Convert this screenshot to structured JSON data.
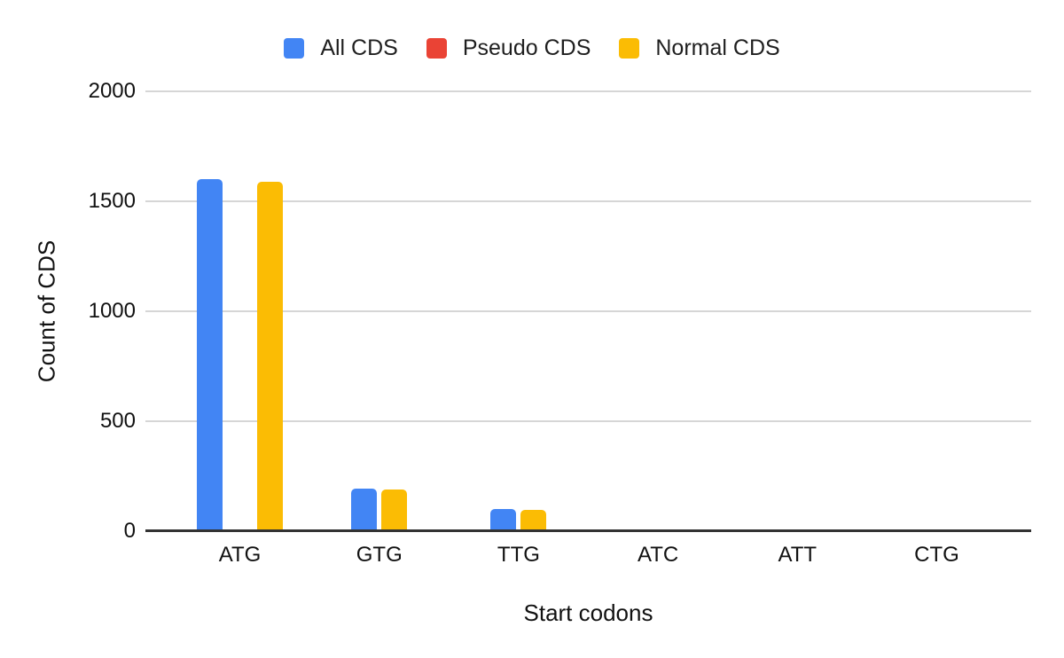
{
  "chart_data": {
    "type": "bar",
    "title": "",
    "categories": [
      "ATG",
      "GTG",
      "TTG",
      "ATC",
      "ATT",
      "CTG"
    ],
    "series": [
      {
        "name": "All CDS",
        "color": "#4285F4",
        "values": [
          1600,
          195,
          100,
          0,
          0,
          0
        ]
      },
      {
        "name": "Pseudo CDS",
        "color": "#EA4335",
        "values": [
          10,
          0,
          0,
          0,
          0,
          0
        ]
      },
      {
        "name": "Normal CDS",
        "color": "#FBBC04",
        "values": [
          1590,
          190,
          95,
          0,
          0,
          0
        ]
      }
    ],
    "xlabel": "Start codons",
    "ylabel": "Count of CDS",
    "ylim": [
      0,
      2000
    ],
    "yticks": [
      0,
      500,
      1000,
      1500,
      2000
    ],
    "grid": true,
    "legend_position": "top",
    "background": "#ffffff",
    "gridline_color": "#d6d6d6",
    "baseline_color": "#333333",
    "text_color": "#111111"
  }
}
